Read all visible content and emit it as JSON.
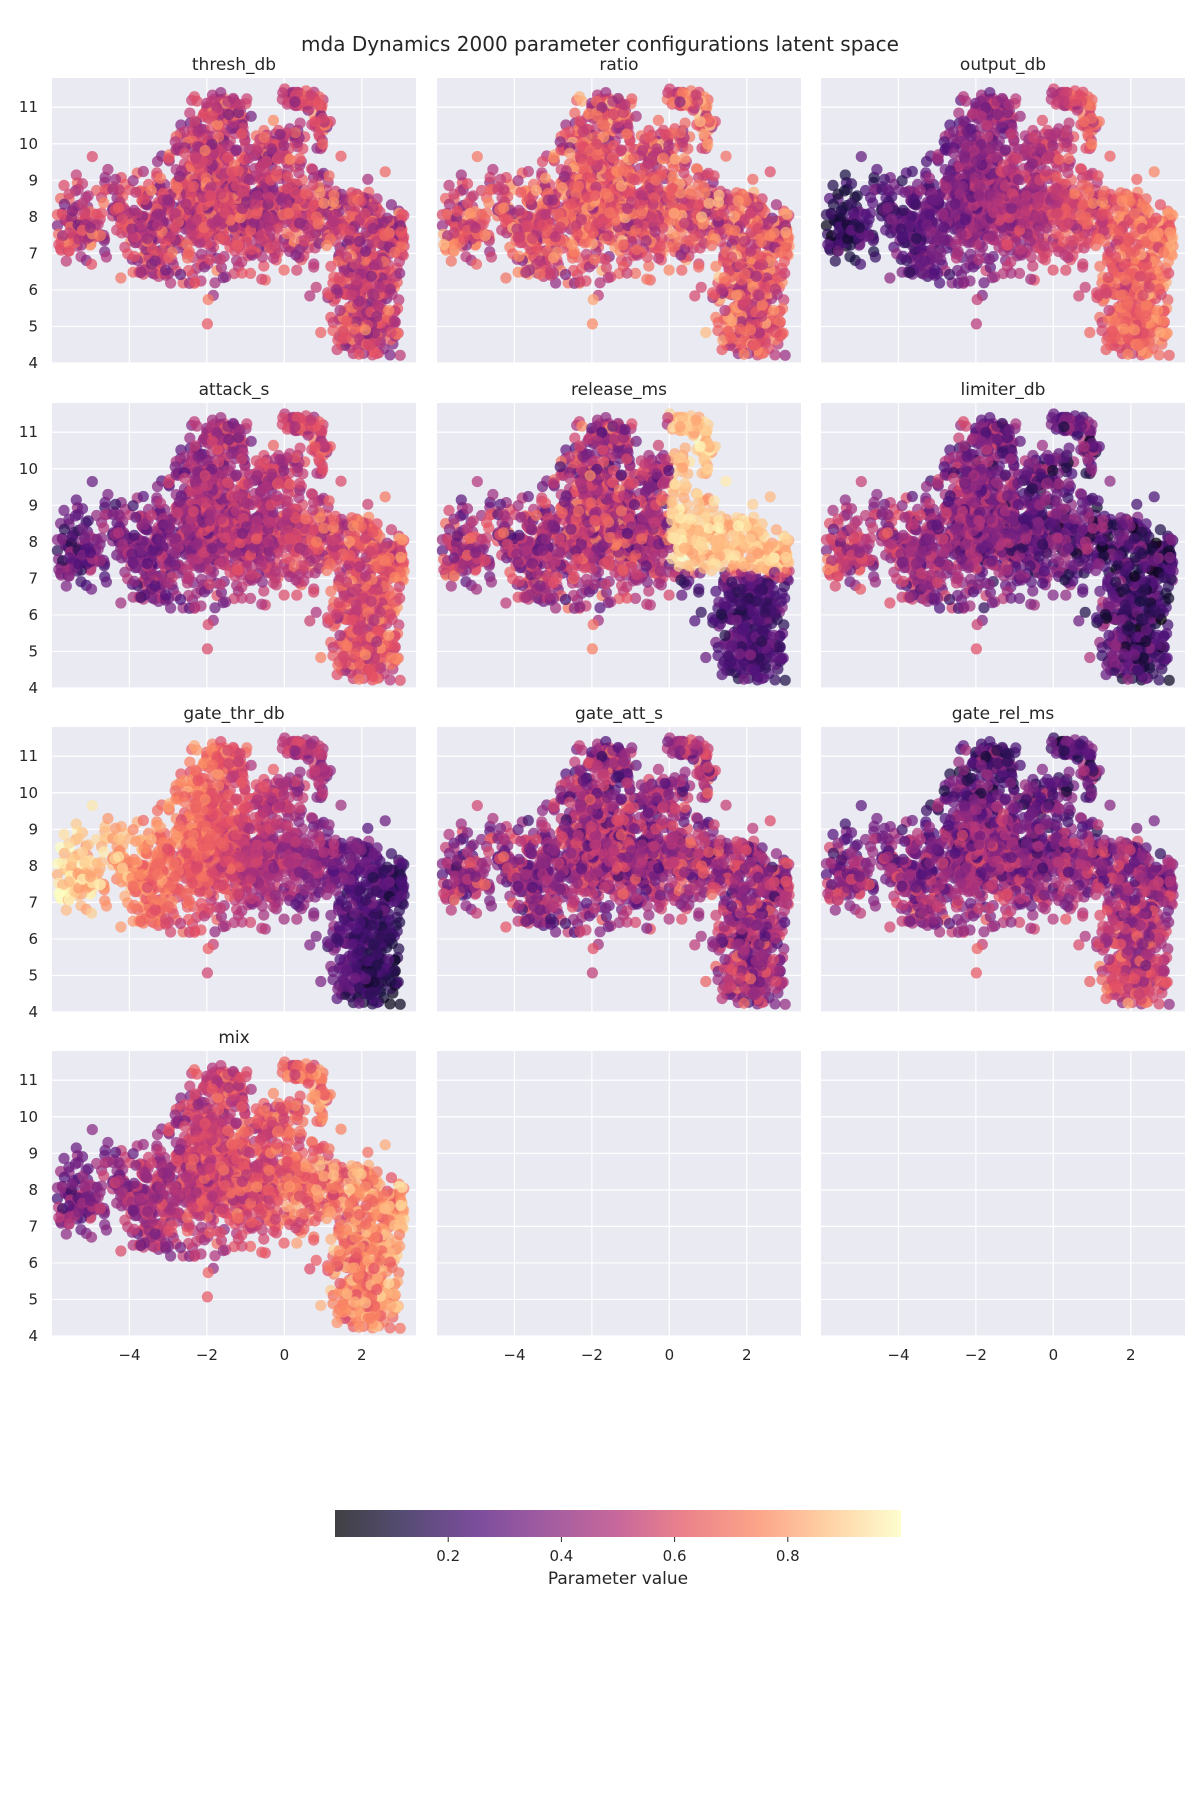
{
  "chart_data": {
    "type": "scatter",
    "title": "mda Dynamics 2000 parameter configurations latent space",
    "n_points": 2000,
    "xlim": [
      -6.0,
      3.4
    ],
    "ylim": [
      4.0,
      11.8
    ],
    "x_ticks": [
      -4,
      -2,
      0,
      2
    ],
    "y_ticks": [
      4,
      5,
      6,
      7,
      8,
      9,
      10,
      11
    ],
    "grid": true,
    "shared_axes": true,
    "colormap": "magma",
    "panels": [
      {
        "name": "thresh_db"
      },
      {
        "name": "ratio"
      },
      {
        "name": "output_db"
      },
      {
        "name": "attack_s"
      },
      {
        "name": "release_ms"
      },
      {
        "name": "limiter_db"
      },
      {
        "name": "gate_thr_db"
      },
      {
        "name": "gate_att_s"
      },
      {
        "name": "gate_rel_ms"
      },
      {
        "name": "mix"
      }
    ],
    "empty_panels": 2,
    "colorbar": {
      "label": "Parameter value",
      "range": [
        0.0,
        1.0
      ],
      "ticks": [
        "0.2",
        "0.4",
        "0.6",
        "0.8"
      ]
    },
    "colors": {
      "axes_bg": "#eaeaf2",
      "grid": "#ffffff",
      "text": "#262626"
    }
  }
}
